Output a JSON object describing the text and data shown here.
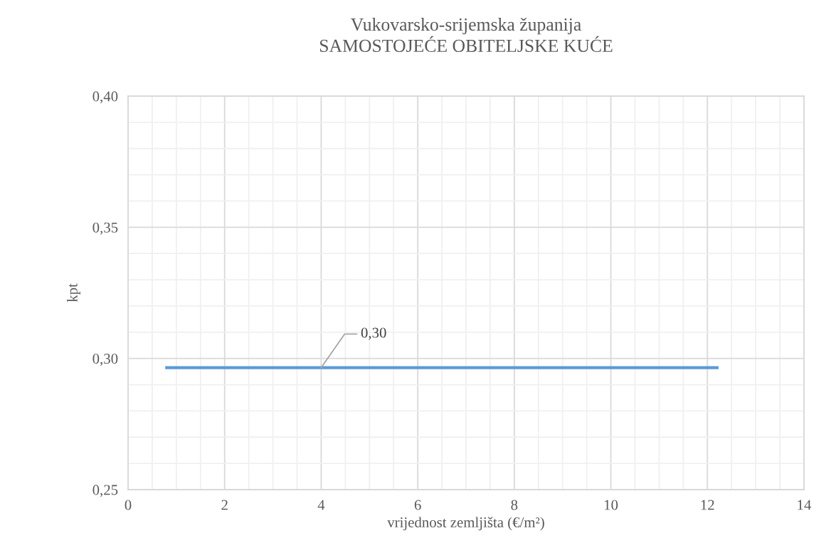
{
  "chart_data": {
    "type": "line",
    "title": "Vukovarsko-srijemska županija",
    "subtitle": "SAMOSTOJEĆE OBITELJSKE KUĆE",
    "xlabel": "vrijednost zemljišta (€/m²)",
    "ylabel": "kpt",
    "series": [
      {
        "color": "#5b9bd5",
        "x": [
          0.8,
          12.2
        ],
        "values": [
          0.2965,
          0.2965
        ]
      }
    ],
    "xlim": [
      0,
      14
    ],
    "xticks": [
      0,
      2,
      4,
      6,
      8,
      10,
      12,
      14
    ],
    "ylim": [
      0.25,
      0.4
    ],
    "yticks": [
      {
        "value": 0.25,
        "label": "0,25"
      },
      {
        "value": 0.3,
        "label": "0,30"
      },
      {
        "value": 0.35,
        "label": "0,35"
      },
      {
        "value": 0.4,
        "label": "0,40"
      }
    ],
    "annotations": [
      {
        "text": "0,30",
        "x": 4,
        "y": 0.2965
      }
    ],
    "grid": true,
    "marker": "none",
    "line_style": "solid"
  }
}
